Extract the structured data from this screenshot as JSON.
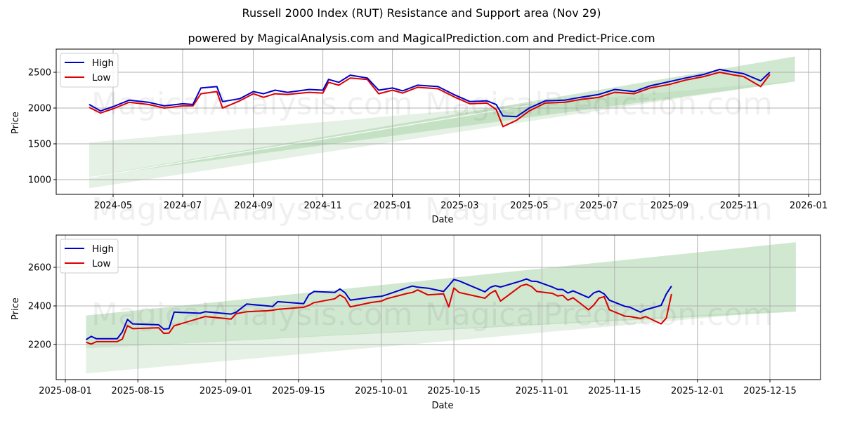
{
  "header": {
    "title": "Russell 2000 Index (RUT) Resistance and Support area (Nov 29)",
    "subtitle": "powered by MagicalAnalysis.com and MagicalPrediction.com and Predict-Price.com"
  },
  "watermarks": [
    "MagicalAnalysis.com",
    "MagicalPrediction.com"
  ],
  "colors": {
    "high": "#0000cc",
    "low": "#dd0000",
    "band_dark": "#a9d3a9",
    "band_light": "#cfe6cf",
    "grid": "#b0b0b0"
  },
  "chart_data": [
    {
      "type": "line",
      "title": "Russell 2000 Index (RUT) Resistance and Support area (Nov 29)",
      "xlabel": "Date",
      "ylabel": "Price",
      "ylim": [
        780,
        2830
      ],
      "grid": true,
      "legend": {
        "position": "upper left",
        "entries": [
          "High",
          "Low"
        ]
      },
      "x_ticks": [
        "2024-05",
        "2024-07",
        "2024-09",
        "2024-11",
        "2025-01",
        "2025-03",
        "2025-05",
        "2025-07",
        "2025-09",
        "2025-11",
        "2026-01"
      ],
      "y_ticks": [
        1000,
        1500,
        2000,
        2500
      ],
      "x": [
        "2024-04-10",
        "2024-04-20",
        "2024-05-01",
        "2024-05-15",
        "2024-06-01",
        "2024-06-15",
        "2024-07-01",
        "2024-07-10",
        "2024-07-17",
        "2024-07-31",
        "2024-08-05",
        "2024-08-20",
        "2024-09-01",
        "2024-09-10",
        "2024-09-20",
        "2024-10-01",
        "2024-10-20",
        "2024-11-01",
        "2024-11-06",
        "2024-11-15",
        "2024-11-25",
        "2024-12-10",
        "2024-12-20",
        "2025-01-01",
        "2025-01-10",
        "2025-01-23",
        "2025-02-10",
        "2025-02-25",
        "2025-03-10",
        "2025-03-25",
        "2025-04-02",
        "2025-04-08",
        "2025-04-20",
        "2025-05-01",
        "2025-05-15",
        "2025-06-01",
        "2025-06-15",
        "2025-07-01",
        "2025-07-15",
        "2025-08-01",
        "2025-08-15",
        "2025-09-01",
        "2025-09-15",
        "2025-10-01",
        "2025-10-15",
        "2025-10-25",
        "2025-11-05",
        "2025-11-20",
        "2025-11-28"
      ],
      "series": [
        {
          "name": "High",
          "values": [
            2050,
            1960,
            2020,
            2110,
            2080,
            2030,
            2060,
            2050,
            2280,
            2300,
            2090,
            2130,
            2230,
            2200,
            2250,
            2220,
            2260,
            2250,
            2400,
            2360,
            2460,
            2420,
            2250,
            2280,
            2240,
            2320,
            2300,
            2180,
            2090,
            2100,
            2050,
            1890,
            1880,
            2000,
            2100,
            2110,
            2150,
            2190,
            2260,
            2230,
            2310,
            2370,
            2420,
            2470,
            2540,
            2510,
            2480,
            2380,
            2500
          ]
        },
        {
          "name": "Low",
          "values": [
            2010,
            1930,
            1990,
            2080,
            2050,
            2000,
            2030,
            2030,
            2200,
            2230,
            2000,
            2100,
            2200,
            2150,
            2200,
            2190,
            2220,
            2210,
            2360,
            2320,
            2420,
            2400,
            2200,
            2250,
            2210,
            2290,
            2270,
            2150,
            2060,
            2070,
            1980,
            1740,
            1830,
            1960,
            2070,
            2080,
            2120,
            2150,
            2220,
            2200,
            2280,
            2330,
            2390,
            2440,
            2500,
            2470,
            2440,
            2300,
            2470
          ]
        }
      ],
      "bands": [
        {
          "name": "Support area (light)",
          "x": [
            "2024-04-10",
            "2025-12-20"
          ],
          "upper": [
            1520,
            2380
          ],
          "lower": [
            880,
            2380
          ]
        },
        {
          "name": "Resistance/Support area (dark)",
          "x": [
            "2024-04-10",
            "2025-12-20"
          ],
          "upper": [
            1040,
            2720
          ],
          "lower": [
            1040,
            2370
          ]
        }
      ]
    },
    {
      "type": "line",
      "title": "",
      "xlabel": "Date",
      "ylabel": "Price",
      "ylim": [
        2015,
        2765
      ],
      "grid": true,
      "legend": {
        "position": "upper left",
        "entries": [
          "High",
          "Low"
        ]
      },
      "x_ticks": [
        "2025-08-01",
        "2025-08-15",
        "2025-09-01",
        "2025-09-15",
        "2025-10-01",
        "2025-10-15",
        "2025-11-01",
        "2025-11-15",
        "2025-12-01",
        "2025-12-15"
      ],
      "y_ticks": [
        2200,
        2400,
        2600
      ],
      "x": [
        "2025-08-05",
        "2025-08-06",
        "2025-08-07",
        "2025-08-11",
        "2025-08-12",
        "2025-08-13",
        "2025-08-14",
        "2025-08-19",
        "2025-08-20",
        "2025-08-21",
        "2025-08-22",
        "2025-08-27",
        "2025-08-28",
        "2025-09-02",
        "2025-09-03",
        "2025-09-05",
        "2025-09-09",
        "2025-09-10",
        "2025-09-11",
        "2025-09-16",
        "2025-09-17",
        "2025-09-18",
        "2025-09-22",
        "2025-09-23",
        "2025-09-24",
        "2025-09-25",
        "2025-09-29",
        "2025-10-01",
        "2025-10-02",
        "2025-10-06",
        "2025-10-07",
        "2025-10-08",
        "2025-10-10",
        "2025-10-13",
        "2025-10-14",
        "2025-10-15",
        "2025-10-16",
        "2025-10-21",
        "2025-10-22",
        "2025-10-23",
        "2025-10-24",
        "2025-10-28",
        "2025-10-29",
        "2025-10-30",
        "2025-10-31",
        "2025-11-03",
        "2025-11-04",
        "2025-11-05",
        "2025-11-06",
        "2025-11-07",
        "2025-11-10",
        "2025-11-11",
        "2025-11-12",
        "2025-11-13",
        "2025-11-14",
        "2025-11-17",
        "2025-11-18",
        "2025-11-19",
        "2025-11-20",
        "2025-11-21",
        "2025-11-24",
        "2025-11-25",
        "2025-11-26"
      ],
      "series": [
        {
          "name": "High",
          "values": [
            2225,
            2242,
            2230,
            2230,
            2265,
            2330,
            2307,
            2302,
            2280,
            2282,
            2368,
            2362,
            2370,
            2358,
            2368,
            2410,
            2400,
            2397,
            2422,
            2412,
            2458,
            2475,
            2470,
            2488,
            2468,
            2430,
            2445,
            2450,
            2458,
            2495,
            2503,
            2497,
            2492,
            2475,
            2505,
            2537,
            2530,
            2473,
            2496,
            2505,
            2498,
            2530,
            2540,
            2528,
            2527,
            2498,
            2486,
            2485,
            2467,
            2478,
            2443,
            2468,
            2477,
            2462,
            2430,
            2398,
            2393,
            2380,
            2368,
            2380,
            2403,
            2462,
            2503
          ]
        },
        {
          "name": "Low",
          "values": [
            2212,
            2202,
            2215,
            2215,
            2228,
            2298,
            2282,
            2287,
            2258,
            2259,
            2297,
            2337,
            2345,
            2332,
            2360,
            2370,
            2375,
            2378,
            2382,
            2393,
            2403,
            2417,
            2437,
            2457,
            2440,
            2395,
            2418,
            2425,
            2437,
            2465,
            2470,
            2483,
            2457,
            2463,
            2395,
            2493,
            2470,
            2440,
            2465,
            2480,
            2425,
            2505,
            2512,
            2500,
            2475,
            2465,
            2452,
            2455,
            2430,
            2442,
            2380,
            2405,
            2440,
            2448,
            2380,
            2347,
            2345,
            2340,
            2335,
            2345,
            2307,
            2337,
            2462
          ]
        }
      ],
      "bands": [
        {
          "name": "Support area (light)",
          "x": [
            "2025-08-05",
            "2025-12-20"
          ],
          "upper": [
            2180,
            2380
          ],
          "lower": [
            2050,
            2380
          ]
        },
        {
          "name": "Resistance/Support area (dark)",
          "x": [
            "2025-08-05",
            "2025-12-20"
          ],
          "upper": [
            2350,
            2730
          ],
          "lower": [
            2180,
            2370
          ]
        }
      ]
    }
  ]
}
